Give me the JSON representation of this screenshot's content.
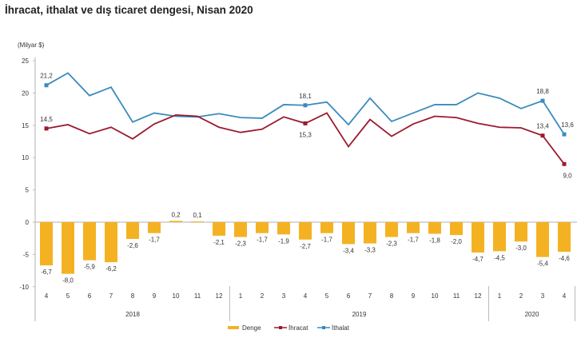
{
  "chart_data": {
    "type": "bar+line",
    "title": "İhracat, ithalat ve dış ticaret dengesi, Nisan 2020",
    "ylabel": "(Milyar $)",
    "ylim": [
      -10,
      25
    ],
    "yticks": [
      25,
      20,
      15,
      10,
      5,
      0,
      -5,
      -10
    ],
    "categories": [
      "4",
      "5",
      "6",
      "7",
      "8",
      "9",
      "10",
      "11",
      "12",
      "1",
      "2",
      "3",
      "4",
      "5",
      "6",
      "7",
      "8",
      "9",
      "10",
      "11",
      "12",
      "1",
      "2",
      "3",
      "4"
    ],
    "year_groups": [
      {
        "label": "2018",
        "count": 9
      },
      {
        "label": "2019",
        "count": 12
      },
      {
        "label": "2020",
        "count": 4
      }
    ],
    "series": [
      {
        "name": "Denge",
        "type": "bar",
        "color": "#f4b223",
        "values": [
          -6.7,
          -8.0,
          -5.9,
          -6.2,
          -2.6,
          -1.7,
          0.2,
          0.1,
          -2.1,
          -2.3,
          -1.7,
          -1.9,
          -2.7,
          -1.7,
          -3.4,
          -3.3,
          -2.3,
          -1.7,
          -1.8,
          -2.0,
          -4.7,
          -4.5,
          -3.0,
          -5.4,
          -4.6
        ],
        "labels": [
          "-6,7",
          "-8,0",
          "-5,9",
          "-6,2",
          "-2,6",
          "-1,7",
          "0,2",
          "0,1",
          "-2,1",
          "-2,3",
          "-1,7",
          "-1,9",
          "-2,7",
          "-1,7",
          "-3,4",
          "-3,3",
          "-2,3",
          "-1,7",
          "-1,8",
          "-2,0",
          "-4,7",
          "-4,5",
          "-3,0",
          "-5,4",
          "-4,6"
        ]
      },
      {
        "name": "İhracat",
        "type": "line",
        "color": "#9b1b2e",
        "values": [
          14.5,
          15.1,
          13.7,
          14.7,
          12.9,
          15.2,
          16.6,
          16.4,
          14.7,
          13.9,
          14.4,
          16.3,
          15.3,
          16.9,
          11.7,
          15.9,
          13.3,
          15.2,
          16.4,
          16.2,
          15.3,
          14.7,
          14.6,
          13.4,
          9.0
        ],
        "annotations": [
          {
            "index": 0,
            "text": "14,5",
            "pos": "above"
          },
          {
            "index": 12,
            "text": "15,3",
            "pos": "below"
          },
          {
            "index": 23,
            "text": "13,4",
            "pos": "above"
          },
          {
            "index": 24,
            "text": "9,0",
            "pos": "below"
          }
        ]
      },
      {
        "name": "İthalat",
        "type": "line",
        "color": "#3b8bbd",
        "values": [
          21.2,
          23.1,
          19.6,
          20.9,
          15.5,
          16.9,
          16.4,
          16.3,
          16.8,
          16.2,
          16.1,
          18.2,
          18.1,
          18.6,
          15.1,
          19.2,
          15.6,
          16.9,
          18.2,
          18.2,
          20.0,
          19.2,
          17.6,
          18.8,
          13.6
        ],
        "annotations": [
          {
            "index": 0,
            "text": "21,2",
            "pos": "above"
          },
          {
            "index": 12,
            "text": "18,1",
            "pos": "above"
          },
          {
            "index": 23,
            "text": "18,8",
            "pos": "above"
          },
          {
            "index": 24,
            "text": "13,6",
            "pos": "above"
          }
        ]
      }
    ],
    "legend": "bottom-center",
    "grid": false
  }
}
